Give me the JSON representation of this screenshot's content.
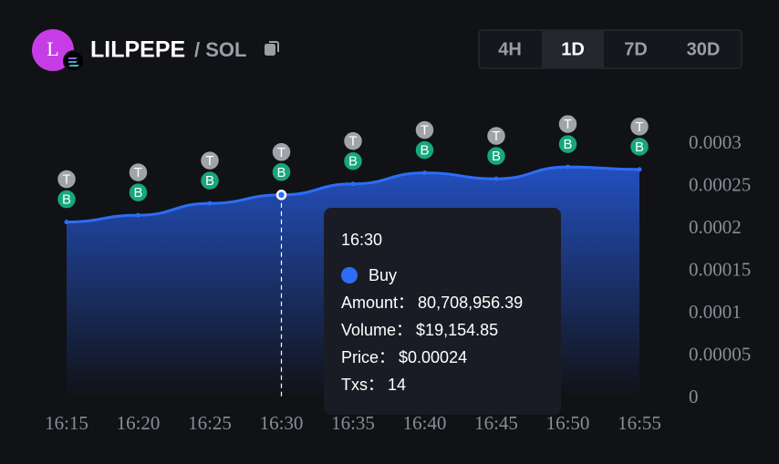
{
  "header": {
    "avatar_letter": "L",
    "name": "LILPEPE",
    "quote": "/ SOL"
  },
  "timeframes": {
    "options": [
      "4H",
      "1D",
      "7D",
      "30D"
    ],
    "active_index": 1
  },
  "chart_data": {
    "type": "area",
    "categories": [
      "16:15",
      "16:20",
      "16:25",
      "16:30",
      "16:35",
      "16:40",
      "16:45",
      "16:50",
      "16:55"
    ],
    "series": [
      {
        "name": "Buy",
        "color": "#2d6df6",
        "values": [
          0.000208,
          0.000216,
          0.00023,
          0.00024,
          0.000253,
          0.000266,
          0.000259,
          0.000273,
          0.00027
        ]
      }
    ],
    "ylim": [
      0,
      0.0003
    ],
    "yticks": [
      0,
      5e-05,
      0.0001,
      0.00015,
      0.0002,
      0.00025,
      0.0003
    ],
    "markers": {
      "top": "T",
      "bottom": "B"
    }
  },
  "tooltip": {
    "index": 3,
    "time": "16:30",
    "fields": [
      {
        "label": "Amount：",
        "value": "80,708,956.39"
      },
      {
        "label": "Volume：",
        "value": "$19,154.85"
      },
      {
        "label": "Price：",
        "value": "$0.00024"
      },
      {
        "label": "Txs：",
        "value": "14"
      }
    ]
  }
}
